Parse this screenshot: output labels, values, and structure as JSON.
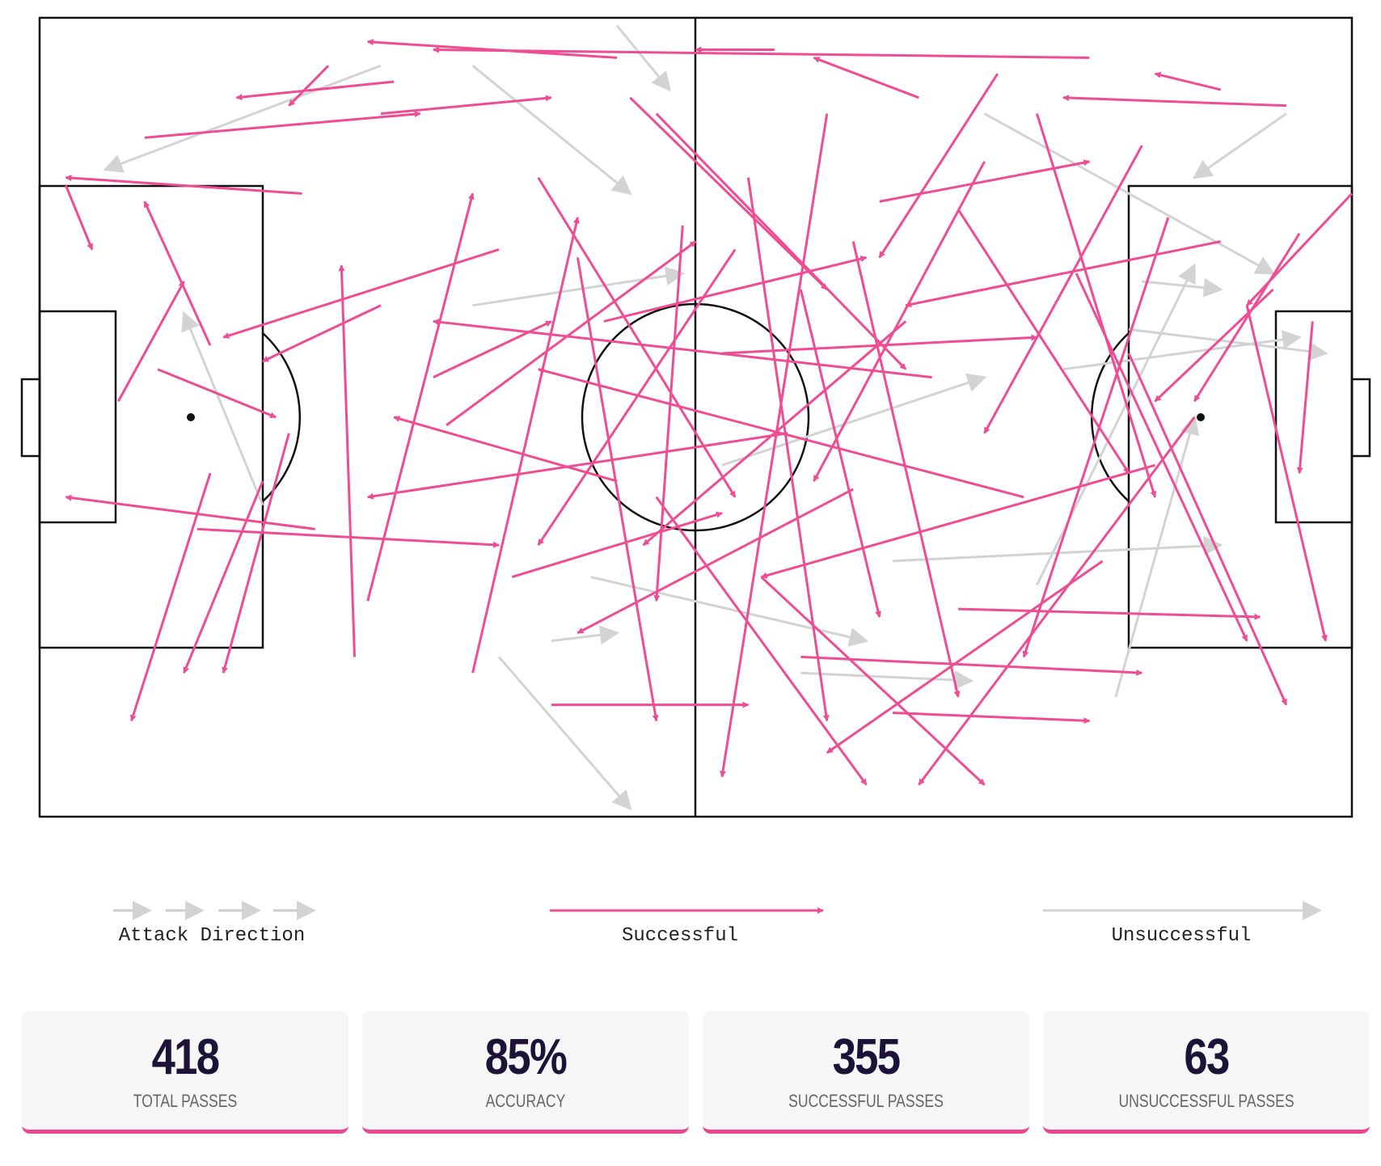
{
  "passes": {
    "successful": [
      [
        80,
        5,
        30,
        4
      ],
      [
        44,
        5,
        25,
        3
      ],
      [
        56,
        4,
        50,
        4
      ],
      [
        67,
        10,
        59,
        5
      ],
      [
        90,
        9,
        85,
        7
      ],
      [
        95,
        11,
        78,
        10
      ],
      [
        6,
        48,
        11,
        33
      ],
      [
        2,
        21,
        4,
        29
      ],
      [
        20,
        22,
        2,
        20
      ],
      [
        8,
        15,
        29,
        12
      ],
      [
        22,
        6,
        19,
        11
      ],
      [
        26,
        12,
        39,
        10
      ],
      [
        27,
        8,
        15,
        10
      ],
      [
        12,
        64,
        35,
        66
      ],
      [
        21,
        64,
        2,
        60
      ],
      [
        13,
        41,
        8,
        23
      ],
      [
        26,
        36,
        17,
        43
      ],
      [
        35,
        29,
        14,
        40
      ],
      [
        19,
        52,
        14,
        82
      ],
      [
        13,
        57,
        7,
        88
      ],
      [
        17,
        58,
        11,
        82
      ],
      [
        9,
        44,
        18,
        50
      ],
      [
        24,
        80,
        23,
        31
      ],
      [
        30,
        45,
        39,
        38
      ],
      [
        25,
        73,
        33,
        22
      ],
      [
        33,
        82,
        41,
        25
      ],
      [
        38,
        20,
        53,
        60
      ],
      [
        41,
        30,
        47,
        88
      ],
      [
        45,
        10,
        60,
        34
      ],
      [
        49,
        26,
        47,
        73
      ],
      [
        54,
        20,
        60,
        88
      ],
      [
        58,
        34,
        64,
        75
      ],
      [
        60,
        12,
        52,
        95
      ],
      [
        62,
        28,
        70,
        85
      ],
      [
        66,
        38,
        46,
        66
      ],
      [
        70,
        24,
        83,
        57
      ],
      [
        73,
        7,
        64,
        30
      ],
      [
        76,
        12,
        85,
        60
      ],
      [
        79,
        32,
        92,
        78
      ],
      [
        83,
        42,
        95,
        86
      ],
      [
        86,
        25,
        75,
        80
      ],
      [
        88,
        50,
        67,
        96
      ],
      [
        84,
        16,
        72,
        52
      ],
      [
        92,
        36,
        98,
        78
      ],
      [
        97,
        38,
        96,
        57
      ],
      [
        100,
        22,
        92,
        36
      ],
      [
        96,
        27,
        88,
        48
      ],
      [
        94,
        34,
        85,
        48
      ],
      [
        85,
        56,
        55,
        70
      ],
      [
        75,
        60,
        38,
        44
      ],
      [
        68,
        45,
        30,
        38
      ],
      [
        57,
        52,
        25,
        60
      ],
      [
        44,
        58,
        27,
        50
      ],
      [
        36,
        70,
        52,
        62
      ],
      [
        39,
        86,
        54,
        86
      ],
      [
        47,
        60,
        63,
        96
      ],
      [
        52,
        42,
        76,
        40
      ],
      [
        62,
        59,
        41,
        77
      ],
      [
        70,
        74,
        93,
        75
      ],
      [
        58,
        80,
        84,
        82
      ],
      [
        65,
        87,
        80,
        88
      ],
      [
        43,
        38,
        63,
        30
      ],
      [
        55,
        70,
        72,
        96
      ],
      [
        64,
        23,
        80,
        18
      ],
      [
        53,
        29,
        38,
        66
      ],
      [
        31,
        51,
        50,
        28
      ],
      [
        47,
        12,
        66,
        44
      ],
      [
        72,
        18,
        59,
        58
      ],
      [
        81,
        68,
        60,
        92
      ],
      [
        90,
        28,
        66,
        36
      ]
    ],
    "unsuccessful": [
      [
        26,
        6,
        5,
        19
      ],
      [
        33,
        6,
        45,
        22
      ],
      [
        17,
        61,
        11,
        37
      ],
      [
        42,
        70,
        63,
        78
      ],
      [
        39,
        78,
        44,
        77
      ],
      [
        35,
        80,
        45,
        99
      ],
      [
        58,
        82,
        71,
        83
      ],
      [
        76,
        71,
        88,
        31
      ],
      [
        83,
        39,
        98,
        42
      ],
      [
        95,
        12,
        88,
        20
      ],
      [
        78,
        44,
        96,
        40
      ],
      [
        72,
        12,
        94,
        32
      ],
      [
        84,
        33,
        90,
        34
      ],
      [
        82,
        85,
        88,
        50
      ],
      [
        65,
        68,
        90,
        66
      ],
      [
        44,
        1,
        48,
        9
      ],
      [
        52,
        56,
        72,
        45
      ],
      [
        33,
        36,
        49,
        32
      ]
    ]
  },
  "legend": {
    "attack": "Attack Direction",
    "successful": "Successful",
    "unsuccessful": "Unsuccessful"
  },
  "stats": [
    {
      "value": "418",
      "label": "TOTAL PASSES"
    },
    {
      "value": "85%",
      "label": "ACCURACY"
    },
    {
      "value": "355",
      "label": "SUCCESSFUL PASSES"
    },
    {
      "value": "63",
      "label": "UNSUCCESSFUL PASSES"
    }
  ]
}
